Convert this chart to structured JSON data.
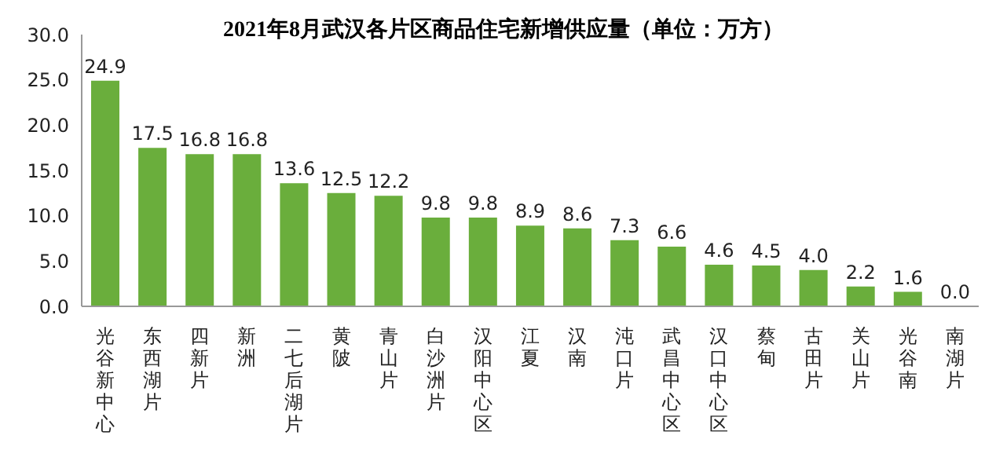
{
  "chart_data": {
    "type": "bar",
    "title": "2021年8月武汉各片区商品住宅新增供应量（单位：万方）",
    "categories": [
      "光谷新中心",
      "东西湖片",
      "四新片",
      "新洲",
      "二七后湖片",
      "黄陂",
      "青山片",
      "白沙洲片",
      "汉阳中心区",
      "江夏",
      "汉南",
      "沌口片",
      "武昌中心区",
      "汉口中心区",
      "蔡甸",
      "古田片",
      "关山片",
      "光谷南",
      "南湖片"
    ],
    "values": [
      24.9,
      17.5,
      16.8,
      16.8,
      13.6,
      12.5,
      12.2,
      9.8,
      9.8,
      8.9,
      8.6,
      7.3,
      6.6,
      4.6,
      4.5,
      4.0,
      2.2,
      1.6,
      0.0
    ],
    "value_labels": [
      "24.9",
      "17.5",
      "16.8",
      "16.8",
      "13.6",
      "12.5",
      "12.2",
      "9.8",
      "9.8",
      "8.9",
      "8.6",
      "7.3",
      "6.6",
      "4.6",
      "4.5",
      "4.0",
      "2.2",
      "1.6",
      "0.0"
    ],
    "color": "#6aae3c",
    "ylim": [
      0,
      30
    ],
    "yticks": [
      {
        "value": 0,
        "label": "0.0"
      },
      {
        "value": 5,
        "label": "5.0"
      },
      {
        "value": 10,
        "label": "10.0"
      },
      {
        "value": 15,
        "label": "15.0"
      },
      {
        "value": 20,
        "label": "20.0"
      },
      {
        "value": 25,
        "label": "25.0"
      },
      {
        "value": 30,
        "label": "30.0"
      }
    ],
    "grid": false,
    "legend": false
  }
}
